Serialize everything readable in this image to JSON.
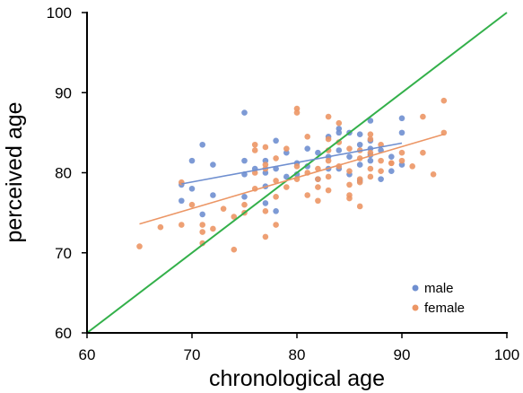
{
  "chart_data": {
    "type": "scatter",
    "xlabel": "chronological age",
    "ylabel": "perceived age",
    "xlim": [
      60,
      100
    ],
    "ylim": [
      60,
      100
    ],
    "x_ticks": [
      60,
      70,
      80,
      90,
      100
    ],
    "y_ticks": [
      60,
      70,
      80,
      90,
      100
    ],
    "grid": false,
    "legend_position": "bottom-right",
    "series": [
      {
        "name": "male",
        "color": "#6f8fd0",
        "points": [
          [
            69,
            76.5
          ],
          [
            69,
            78.5
          ],
          [
            70,
            81.5
          ],
          [
            70,
            78
          ],
          [
            71,
            83.5
          ],
          [
            71,
            74.8
          ],
          [
            72,
            81
          ],
          [
            72,
            77.2
          ],
          [
            75,
            87.5
          ],
          [
            75,
            81.5
          ],
          [
            75,
            79.8
          ],
          [
            75,
            77
          ],
          [
            76,
            80.5
          ],
          [
            77,
            81.5
          ],
          [
            77,
            80
          ],
          [
            77,
            78.3
          ],
          [
            77,
            76.2
          ],
          [
            78,
            84
          ],
          [
            78,
            80.5
          ],
          [
            78,
            75.2
          ],
          [
            79,
            82.5
          ],
          [
            79,
            79.5
          ],
          [
            80,
            81.2
          ],
          [
            80,
            79.8
          ],
          [
            81,
            83
          ],
          [
            81,
            80.8
          ],
          [
            82,
            82.5
          ],
          [
            82,
            79.2
          ],
          [
            83,
            84.5
          ],
          [
            83,
            82
          ],
          [
            83,
            80.5
          ],
          [
            84,
            85.5
          ],
          [
            84,
            85
          ],
          [
            84,
            82.8
          ],
          [
            84,
            80.5
          ],
          [
            85,
            85
          ],
          [
            85,
            82
          ],
          [
            85,
            79.8
          ],
          [
            86,
            84.8
          ],
          [
            86,
            83.5
          ],
          [
            86,
            81
          ],
          [
            86,
            79
          ],
          [
            87,
            86.5
          ],
          [
            87,
            84
          ],
          [
            87,
            83
          ],
          [
            87,
            82.2
          ],
          [
            87,
            81.5
          ],
          [
            88,
            82.8
          ],
          [
            88,
            79.2
          ],
          [
            89,
            82
          ],
          [
            89,
            80.2
          ],
          [
            90,
            86.8
          ],
          [
            90,
            85
          ],
          [
            90,
            81
          ]
        ],
        "trend": {
          "x": [
            69,
            90
          ],
          "y": [
            78.6,
            83.7
          ]
        }
      },
      {
        "name": "female",
        "color": "#ec9665",
        "points": [
          [
            65,
            70.8
          ],
          [
            67,
            73.2
          ],
          [
            69,
            73.5
          ],
          [
            69,
            78.8
          ],
          [
            70,
            76
          ],
          [
            71,
            73.5
          ],
          [
            71,
            72.6
          ],
          [
            71,
            71.2
          ],
          [
            72,
            73
          ],
          [
            73,
            75.5
          ],
          [
            74,
            70.4
          ],
          [
            74,
            74.5
          ],
          [
            75,
            76
          ],
          [
            75,
            75
          ],
          [
            76,
            83.5
          ],
          [
            76,
            82.8
          ],
          [
            76,
            80
          ],
          [
            76,
            78
          ],
          [
            77,
            83.2
          ],
          [
            77,
            81
          ],
          [
            77,
            80.5
          ],
          [
            77,
            75.2
          ],
          [
            77,
            72
          ],
          [
            78,
            81.8
          ],
          [
            78,
            79
          ],
          [
            78,
            77
          ],
          [
            78,
            73.5
          ],
          [
            79,
            83
          ],
          [
            79,
            78.2
          ],
          [
            80,
            88
          ],
          [
            80,
            87.5
          ],
          [
            80,
            80.8
          ],
          [
            80,
            79.2
          ],
          [
            81,
            84.5
          ],
          [
            81,
            80
          ],
          [
            81,
            77.2
          ],
          [
            82,
            80.5
          ],
          [
            82,
            79.2
          ],
          [
            82,
            78.2
          ],
          [
            82,
            76.5
          ],
          [
            83,
            87
          ],
          [
            83,
            84.2
          ],
          [
            83,
            82.8
          ],
          [
            83,
            81.5
          ],
          [
            83,
            79.5
          ],
          [
            83,
            77.8
          ],
          [
            84,
            86.2
          ],
          [
            84,
            83.8
          ],
          [
            84,
            80.8
          ],
          [
            85,
            83
          ],
          [
            85,
            80.2
          ],
          [
            85,
            78.5
          ],
          [
            85,
            77.2
          ],
          [
            85,
            76.8
          ],
          [
            86,
            82.8
          ],
          [
            86,
            81.8
          ],
          [
            86,
            79.2
          ],
          [
            86,
            78.8
          ],
          [
            86,
            75.8
          ],
          [
            87,
            84.8
          ],
          [
            87,
            84.2
          ],
          [
            87,
            82.5
          ],
          [
            87,
            80.5
          ],
          [
            87,
            79.5
          ],
          [
            88,
            83.5
          ],
          [
            88,
            81.5
          ],
          [
            88,
            80.2
          ],
          [
            89,
            81.2
          ],
          [
            89,
            81.2
          ],
          [
            90,
            82.5
          ],
          [
            90,
            81.5
          ],
          [
            91,
            80.8
          ],
          [
            92,
            87
          ],
          [
            92,
            82.5
          ],
          [
            93,
            79.8
          ],
          [
            94,
            89
          ],
          [
            94,
            85
          ]
        ],
        "trend": {
          "x": [
            65,
            94
          ],
          "y": [
            73.6,
            84.8
          ]
        }
      }
    ],
    "reference_line": {
      "color": "#33b04a",
      "x": [
        60,
        100
      ],
      "y": [
        60,
        100
      ]
    }
  }
}
